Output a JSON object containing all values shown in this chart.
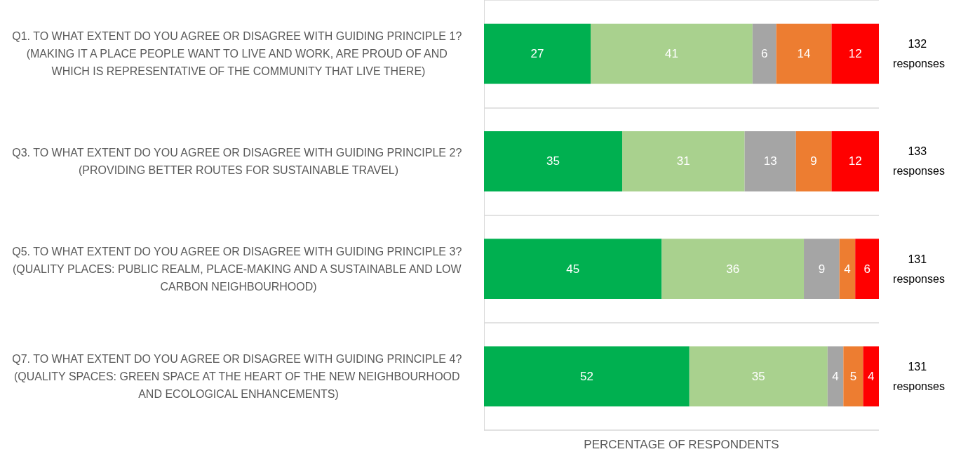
{
  "chart_data": {
    "type": "bar",
    "orientation": "horizontal",
    "stacked": true,
    "xlabel": "PERCENTAGE OF RESPONDENTS",
    "categories": [
      "Q1. TO WHAT EXTENT DO YOU AGREE OR DISAGREE WITH GUIDING PRINCIPLE 1? (MAKING IT A PLACE PEOPLE WANT TO LIVE AND WORK, ARE PROUD OF AND WHICH IS REPRESENTATIVE OF THE COMMUNITY THAT LIVE THERE)",
      "Q3. TO WHAT EXTENT DO YOU AGREE OR DISAGREE WITH GUIDING PRINCIPLE 2? (PROVIDING BETTER ROUTES FOR SUSTAINABLE TRAVEL)",
      "Q5. TO WHAT EXTENT DO YOU AGREE OR DISAGREE WITH GUIDING PRINCIPLE 3? (QUALITY PLACES: PUBLIC REALM, PLACE-MAKING AND A SUSTAINABLE AND LOW CARBON NEIGHBOURHOOD)",
      "Q7. TO WHAT EXTENT DO YOU AGREE OR DISAGREE WITH GUIDING PRINCIPLE 4? (QUALITY SPACES: GREEN SPACE AT THE HEART OF THE NEW NEIGHBOURHOOD AND ECOLOGICAL ENHANCEMENTS)"
    ],
    "series": [
      {
        "color": "#00b050",
        "values": [
          27,
          35,
          45,
          52
        ]
      },
      {
        "color": "#a9d18e",
        "values": [
          41,
          31,
          36,
          35
        ]
      },
      {
        "color": "#a5a5a5",
        "values": [
          6,
          13,
          9,
          4
        ]
      },
      {
        "color": "#ed7d31",
        "values": [
          14,
          9,
          4,
          5
        ]
      },
      {
        "color": "#ff0000",
        "values": [
          12,
          12,
          6,
          4
        ]
      }
    ],
    "xlim": [
      0,
      100
    ],
    "tick_labels": "y",
    "data_labels": true,
    "grid": "y",
    "annotations": [
      "132 responses",
      "133 responses",
      "131 responses",
      "131 responses"
    ]
  }
}
